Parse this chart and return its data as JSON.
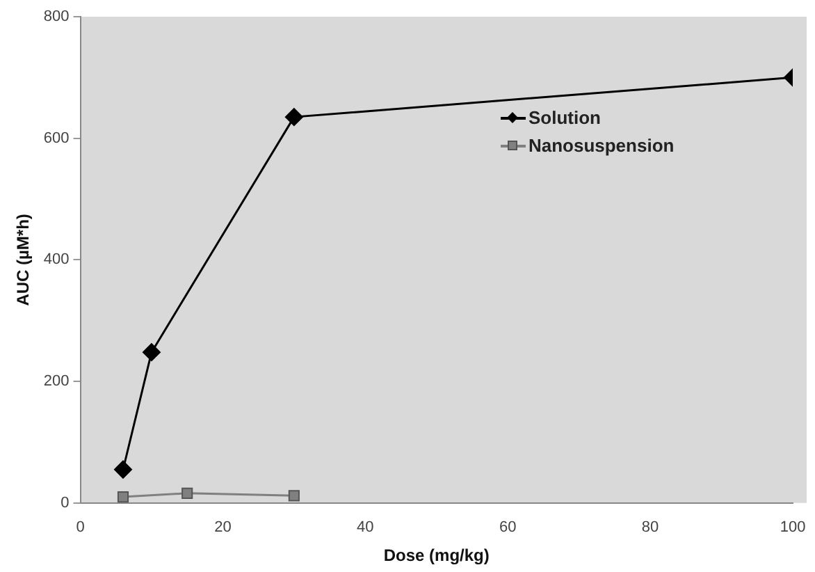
{
  "chart_data": {
    "type": "line",
    "xlabel": "Dose (mg/kg)",
    "ylabel": "AUC (µM*h)",
    "xlim": [
      0,
      100
    ],
    "xticks": [
      0,
      20,
      40,
      60,
      80,
      100
    ],
    "ylim": [
      0,
      800
    ],
    "yticks": [
      0,
      200,
      400,
      600,
      800
    ],
    "grid": false,
    "legend": "top right",
    "series": [
      {
        "name": "Solution",
        "color": "#000000",
        "marker": "diamond",
        "x": [
          6,
          10,
          30,
          100
        ],
        "values": [
          55,
          248,
          635,
          700
        ]
      },
      {
        "name": "Nanosuspension",
        "color": "#808080",
        "marker": "square",
        "x": [
          6,
          15,
          30
        ],
        "values": [
          10,
          16,
          12
        ]
      }
    ]
  }
}
